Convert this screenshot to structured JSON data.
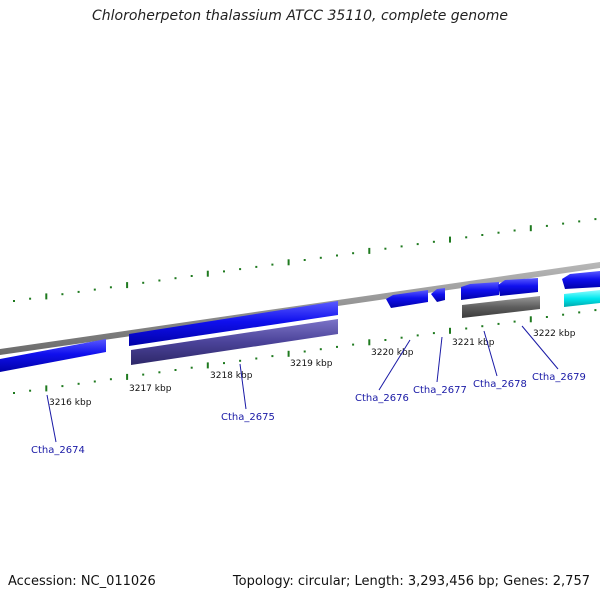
{
  "title": "Chloroherpeton thalassium ATCC 35110, complete genome",
  "footer": {
    "accession": "Accession: NC_011026",
    "summary": "Topology: circular; Length: 3,293,456 bp; Genes: 2,757"
  },
  "scale_labels": [
    "3216 kbp",
    "3217 kbp",
    "3218 kbp",
    "3219 kbp",
    "3220 kbp",
    "3221 kbp",
    "3222 kbp"
  ],
  "gene_labels": [
    "Ctha_2674",
    "Ctha_2675",
    "Ctha_2676",
    "Ctha_2677",
    "Ctha_2678",
    "Ctha_2679"
  ],
  "colors": {
    "backbone": "#8a8a8a",
    "gene_blue": "#1010ee",
    "gene_purple": "#4b4399",
    "gene_gray": "#5e5e5e",
    "gene_cyan": "#00e8ee",
    "tick_green": "#1f7a1f",
    "label_blue": "#1a1aa6"
  }
}
